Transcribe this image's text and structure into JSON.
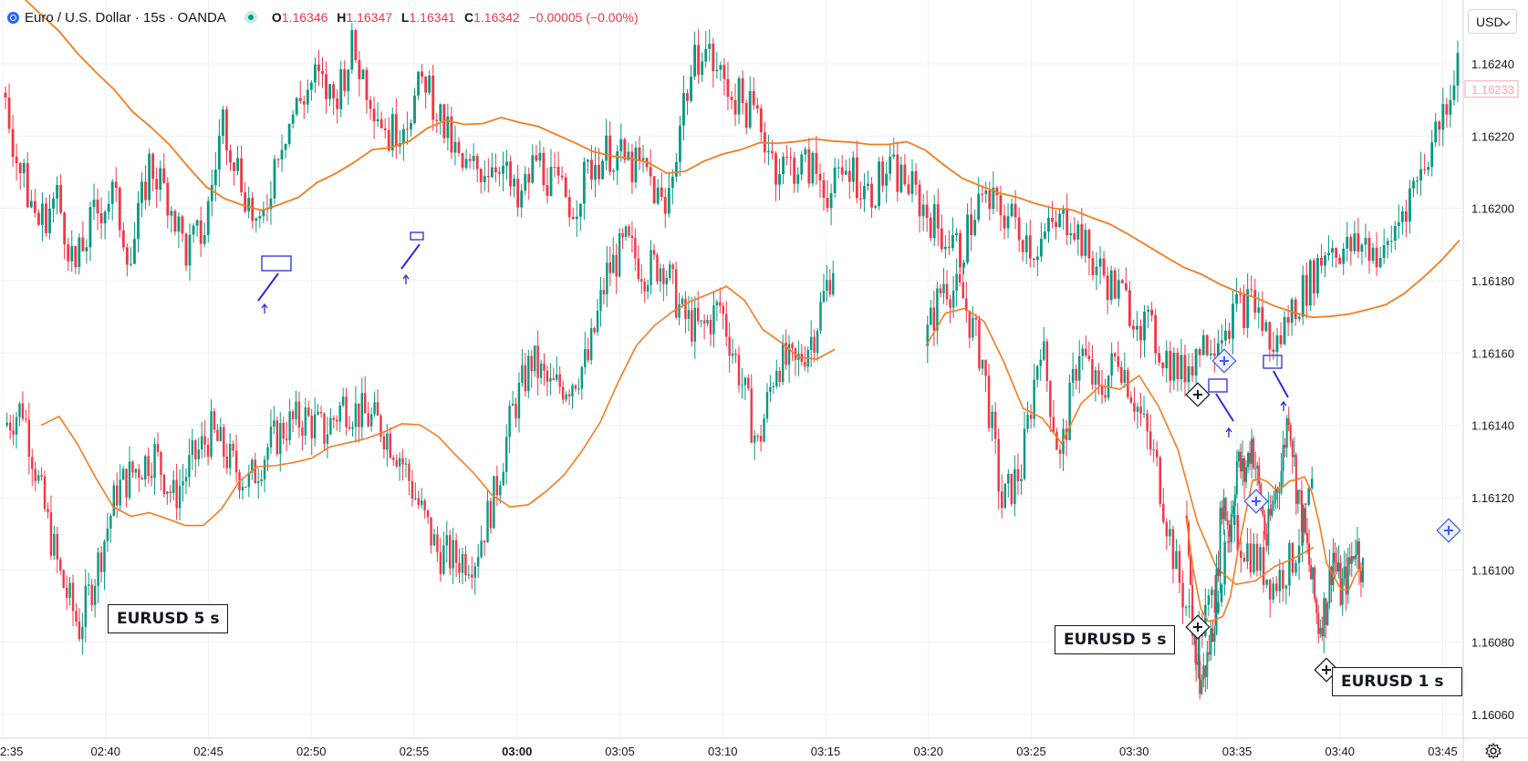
{
  "legend": {
    "title": "Euro / U.S. Dollar · 15s · OANDA",
    "open_label": "O",
    "open": "1.16346",
    "high_label": "H",
    "high": "1.16347",
    "low_label": "L",
    "low": "1.16341",
    "close_label": "C",
    "close": "1.16342",
    "change": "−0.00005 (−0.00%)"
  },
  "currency": "USD",
  "tags": [
    "EURUSD 5 s",
    "EURUSD 5 s",
    "EURUSD 1 s"
  ],
  "icons": [
    "globe-icon",
    "status-dot-icon",
    "chevron-down-icon",
    "gear-icon",
    "arrow-up-icon",
    "pin-icon"
  ],
  "colors": {
    "up": "#089981",
    "down": "#f23645",
    "ma": "#f57c20",
    "drawing": "#2b2bd6",
    "grid": "#eef1f5"
  },
  "chart_data": {
    "type": "candlestick",
    "title": "",
    "symbol": "EURUSD",
    "ylim": [
      1.1605,
      1.1625
    ],
    "yticks": [
      "1.16060",
      "1.16080",
      "1.16100",
      "1.16120",
      "1.16140",
      "1.16160",
      "1.16180",
      "1.16200",
      "1.16220",
      "1.16240"
    ],
    "xticks": [
      "2:35",
      "02:40",
      "02:45",
      "02:50",
      "02:55",
      "03:00",
      "03:05",
      "03:10",
      "03:15",
      "03:20",
      "03:25",
      "03:30",
      "03:35",
      "03:40",
      "03:45"
    ],
    "xrange": [
      "02:35",
      "03:46"
    ],
    "series_main": {
      "close": [
        1.16232,
        1.1621,
        1.16196,
        1.16203,
        1.16183,
        1.16198,
        1.16204,
        1.16186,
        1.16212,
        1.16204,
        1.16188,
        1.16194,
        1.16225,
        1.16208,
        1.16192,
        1.16218,
        1.16228,
        1.16236,
        1.1623,
        1.16244,
        1.16232,
        1.1622,
        1.16226,
        1.16236,
        1.16222,
        1.1621,
        1.16211,
        1.16214,
        1.162,
        1.16214,
        1.16206,
        1.16201,
        1.16212,
        1.16216,
        1.16212,
        1.1621,
        1.16198,
        1.1623,
        1.16246,
        1.16236,
        1.1623,
        1.16225,
        1.16212,
        1.16212,
        1.16211,
        1.16204,
        1.16212,
        1.16204,
        1.1621,
        1.16208,
        1.162,
        1.16193,
        1.16188,
        1.16202,
        1.162,
        1.16196,
        1.16189,
        1.16194,
        1.16198,
        1.16186,
        1.1618,
        1.16174,
        1.16168,
        1.1616,
        1.16154,
        1.16162,
        1.16166,
        1.16172,
        1.16174,
        1.1616,
        1.16172,
        1.1618,
        1.1619,
        1.16188,
        1.1619,
        1.16186,
        1.162,
        1.1621,
        1.16224,
        1.1624
      ],
      "ma_first": 1.16262,
      "ma_last": 1.1619
    },
    "series_inset_left": {
      "name": "EURUSD 5 s",
      "close": [
        1.1614,
        1.16145,
        1.1612,
        1.16098,
        1.16084,
        1.16102,
        1.16122,
        1.16128,
        1.16132,
        1.1612,
        1.1613,
        1.16138,
        1.1613,
        1.16124,
        1.16134,
        1.1614,
        1.16142,
        1.16138,
        1.16146,
        1.16143,
        1.1614,
        1.16132,
        1.16118,
        1.16105,
        1.16103,
        1.16104,
        1.1612,
        1.16144,
        1.16158,
        1.1615,
        1.16152,
        1.16158,
        1.16182,
        1.1619,
        1.16183,
        1.16185,
        1.1617,
        1.16166,
        1.16173,
        1.16155,
        1.16134,
        1.16158,
        1.16156,
        1.16166,
        1.16185
      ]
    },
    "series_inset_right": {
      "name": "EURUSD 5 s",
      "close": [
        1.16162,
        1.1618,
        1.16175,
        1.16158,
        1.16118,
        1.16128,
        1.16164,
        1.1613,
        1.16162,
        1.16148,
        1.1616,
        1.16145,
        1.16128,
        1.161,
        1.1608,
        1.16094,
        1.1611,
        1.16104,
        1.16096,
        1.16103,
        1.16122
      ]
    },
    "series_inset_1s": {
      "name": "EURUSD 1 s",
      "close": [
        1.16115,
        1.16085,
        1.16068,
        1.16075,
        1.16088,
        1.1612,
        1.16112,
        1.1613,
        1.16126,
        1.16136,
        1.16122,
        1.16108,
        1.1612,
        1.16128,
        1.16145,
        1.16124,
        1.16112,
        1.16098,
        1.16085,
        1.1609,
        1.16105,
        1.16094,
        1.16099,
        1.16108,
        1.161
      ]
    }
  }
}
